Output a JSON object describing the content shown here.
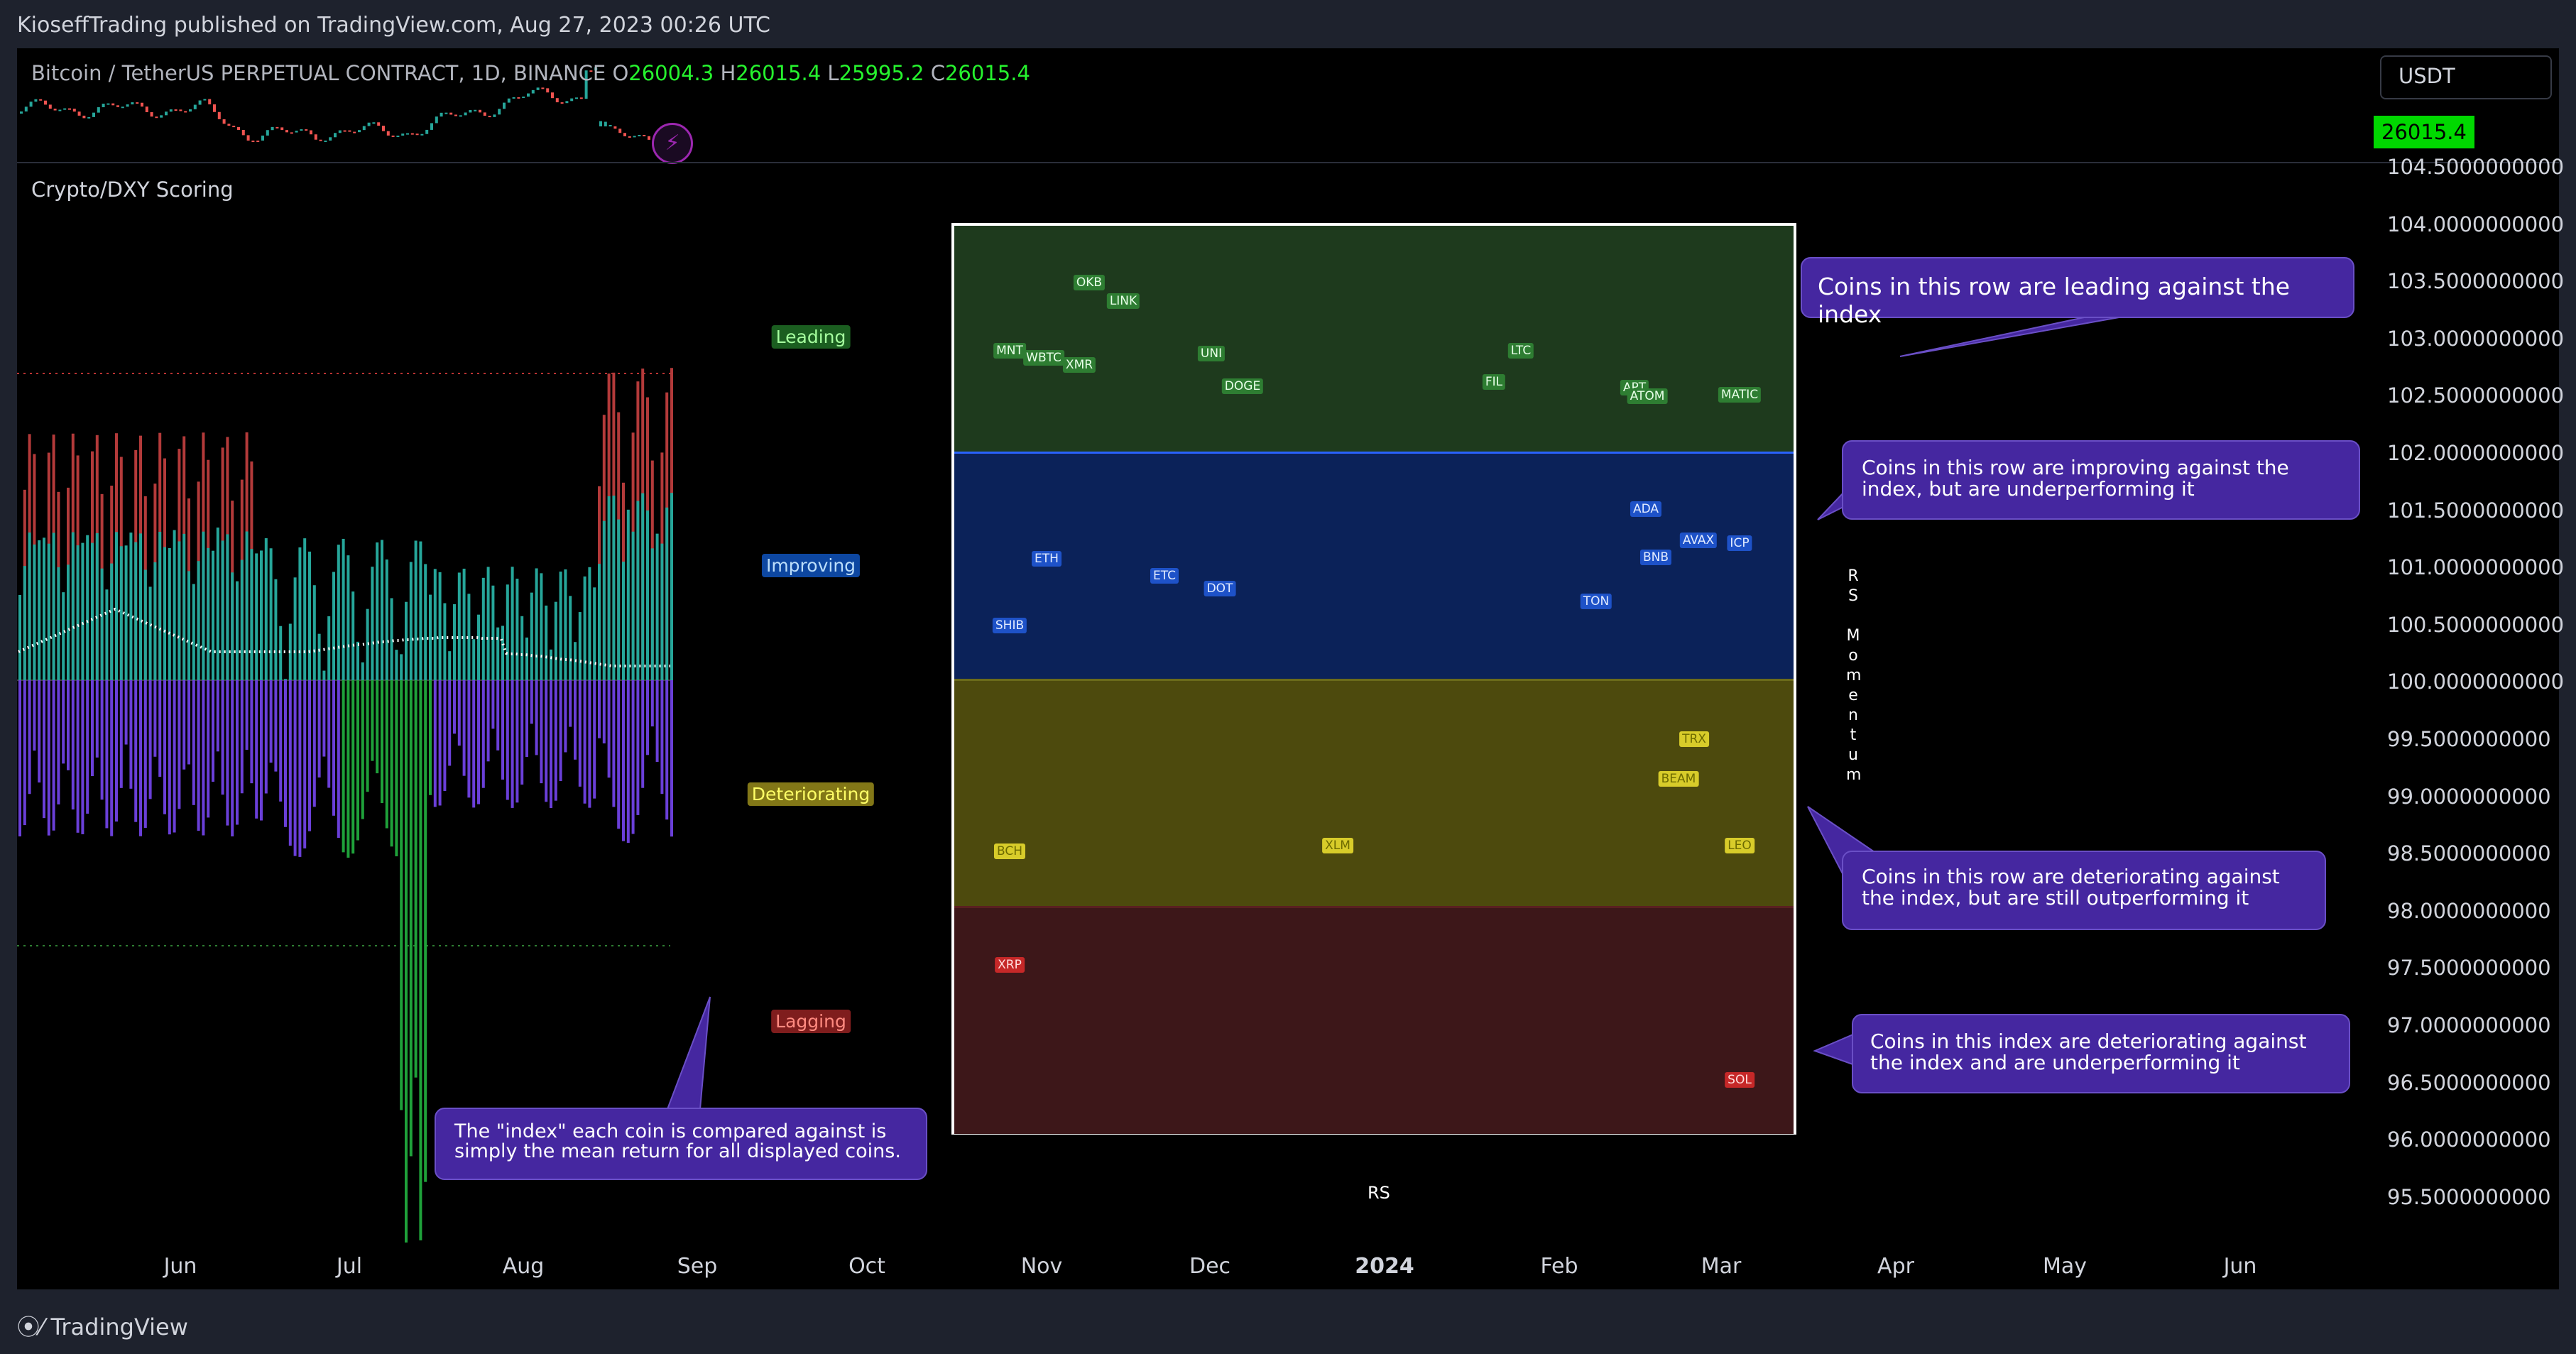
{
  "publish_line": "KioseffTrading published on TradingView.com, Aug 27, 2023 00:26 UTC",
  "symbol": {
    "name": "Bitcoin / TetherUS PERPETUAL CONTRACT, 1D, BINANCE",
    "o_label": "O",
    "o_value": "26004.3",
    "h_label": "H",
    "h_value": "26015.4",
    "l_label": "L",
    "l_value": "25995.2",
    "c_label": "C",
    "c_value": "26015.4"
  },
  "currency": "USDT",
  "last_price": "26015.4",
  "indicator_title": "Crypto/DXY Scoring",
  "y_axis": [
    "104.5000000000",
    "104.0000000000",
    "103.5000000000",
    "103.0000000000",
    "102.5000000000",
    "102.0000000000",
    "101.5000000000",
    "101.0000000000",
    "100.5000000000",
    "100.0000000000",
    "99.5000000000",
    "99.0000000000",
    "98.5000000000",
    "98.0000000000",
    "97.5000000000",
    "97.0000000000",
    "96.5000000000",
    "96.0000000000",
    "95.5000000000"
  ],
  "x_axis": [
    "Jun",
    "Jul",
    "Aug",
    "Sep",
    "Oct",
    "Nov",
    "Dec",
    "2024",
    "Feb",
    "Mar",
    "Apr",
    "May",
    "Jun"
  ],
  "quadrants": {
    "leading": "Leading",
    "improving": "Improving",
    "deteriorating": "Deteriorating",
    "lagging": "Lagging"
  },
  "coins": {
    "leading": [
      "OKB",
      "LINK",
      "MNT",
      "WBTC",
      "XMR",
      "UNI",
      "DOGE",
      "LTC",
      "FIL",
      "APT",
      "ATOM",
      "MATIC"
    ],
    "improving": [
      "ETH",
      "ETC",
      "DOT",
      "SHIB",
      "ADA",
      "BNB",
      "AVAX",
      "ICP",
      "TON"
    ],
    "deteriorating": [
      "TRX",
      "BEAM",
      "BCH",
      "XLM",
      "LEO"
    ],
    "lagging": [
      "XRP",
      "SOL"
    ]
  },
  "axis_labels": {
    "rs": "RS",
    "rs_momentum": "RS Momentum"
  },
  "callouts": {
    "leading": "Coins in this row are leading against the index",
    "improving": "Coins in this row are improving against the index, but are underperforming it",
    "deteriorating": "Coins in this row are deteriorating against the index, but are still outperforming it",
    "lagging": "Coins in this index are deteriorating against the index and are underperforming it",
    "index": "The \"index\" each coin is compared against is simply the mean return for all displayed coins."
  },
  "footer": "TradingView",
  "colors": {
    "up": "#26a69a",
    "down": "#ef5350",
    "purple": "#7b3fe4",
    "green_price": "#26f32e"
  }
}
